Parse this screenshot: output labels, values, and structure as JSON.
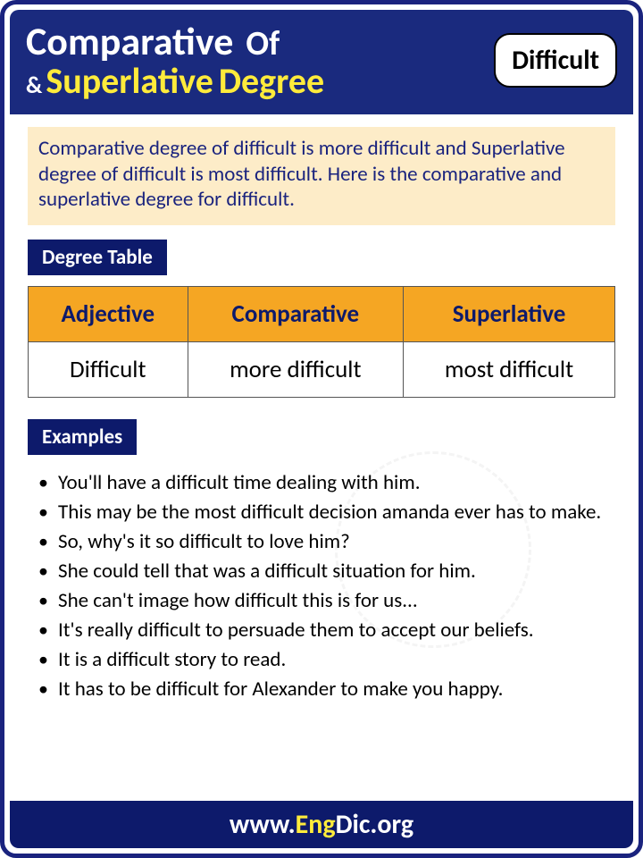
{
  "header": {
    "word_comparative": "Comparative",
    "word_of": "Of",
    "word_amp": "&",
    "word_superlative": "Superlative",
    "word_degree": "Degree",
    "badge": "Difficult"
  },
  "colors": {
    "header_bg": "#1a2a7e",
    "border": "#1a237e",
    "yellow": "#ffeb3b",
    "white": "#ffffff",
    "intro_bg": "#fdecc8",
    "intro_text": "#1a237e",
    "label_bg": "#0d1a6b",
    "th_bg": "#f5a623",
    "th_text": "#0d1a6b",
    "footer_bg": "#0d1a6b"
  },
  "intro": "Comparative degree of difficult is more difficult and Superlative degree of difficult is most difficult. Here is the comparative and superlative degree for difficult.",
  "labels": {
    "degree_table": "Degree Table",
    "examples": "Examples"
  },
  "table": {
    "headers": [
      "Adjective",
      "Comparative",
      "Superlative"
    ],
    "row": [
      "Difficult",
      "more difficult",
      "most difficult"
    ]
  },
  "examples": [
    "You'll have a difficult time dealing with him.",
    "This may be the most difficult decision amanda ever has to make.",
    "So, why's it so difficult to love him?",
    "She could tell that was a difficult situation for him.",
    "She can't image how difficult this is for us...",
    "It's really difficult to persuade them to accept our beliefs.",
    "It is a difficult story to read.",
    "It has to be difficult for Alexander to make you happy."
  ],
  "footer": {
    "prefix": "www.",
    "brand": "Eng",
    "suffix": "Dic.org"
  }
}
